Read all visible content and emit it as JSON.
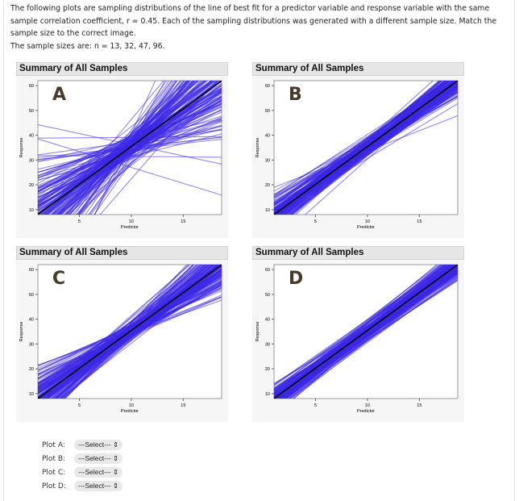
{
  "intro": {
    "line1": "The following plots are sampling distributions of the line of best fit for a predictor variable and response variable with the same sample correlation coefficient, r = 0.45. Each of the sampling distributions was generated with a different sample size. Match the sample size to the correct image.",
    "line2": "The sample sizes are: n = 13, 32, 47, 96."
  },
  "line_color": "#3c28e6",
  "fit_color": "#000000",
  "plots": [
    {
      "title": "Summary of All Samples",
      "letter": "A",
      "xlabel": "Predictor",
      "ylabel": "Response",
      "xticks": [
        "5",
        "10",
        "15"
      ],
      "yticks": [
        "10",
        "20",
        "30",
        "40",
        "50",
        "60"
      ]
    },
    {
      "title": "Summary of All Samples",
      "letter": "B",
      "xlabel": "Predictor",
      "ylabel": "Response",
      "xticks": [
        "5",
        "10",
        "15"
      ],
      "yticks": [
        "10",
        "20",
        "30",
        "40",
        "50",
        "60"
      ]
    },
    {
      "title": "Summary of All Samples",
      "letter": "C",
      "xlabel": "Predictor",
      "ylabel": "Response",
      "xticks": [
        "5",
        "10",
        "15"
      ],
      "yticks": [
        "10",
        "20",
        "30",
        "40",
        "50",
        "60"
      ]
    },
    {
      "title": "Summary of All Samples",
      "letter": "D",
      "xlabel": "Predictor",
      "ylabel": "Response",
      "xticks": [
        "5",
        "10",
        "15"
      ],
      "yticks": [
        "10",
        "20",
        "30",
        "40",
        "50",
        "60"
      ]
    }
  ],
  "chart_data": {
    "type": "line",
    "xlim": [
      1,
      18.7
    ],
    "ylim": [
      8,
      62
    ],
    "xlabel": "Predictor",
    "ylabel": "Response",
    "xticks": [
      5,
      10,
      15
    ],
    "yticks": [
      10,
      20,
      30,
      40,
      50,
      60
    ]
  },
  "selects": [
    {
      "label": "Plot A:",
      "value": "---Select---"
    },
    {
      "label": "Plot B:",
      "value": "---Select---"
    },
    {
      "label": "Plot C:",
      "value": "---Select---"
    },
    {
      "label": "Plot D:",
      "value": "---Select---"
    }
  ]
}
